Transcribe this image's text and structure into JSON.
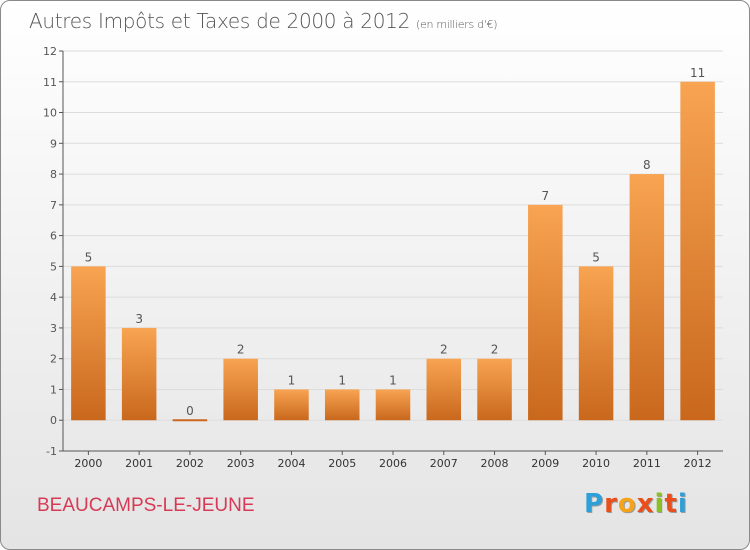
{
  "title": "Autres Impôts et Taxes de 2000 à 2012",
  "unit": "(en milliers d'€)",
  "commune": "BEAUCAMPS-LE-JEUNE",
  "brand": {
    "letters": [
      {
        "char": "P",
        "color": "#2e9fd8"
      },
      {
        "char": "r",
        "color": "#e94e1b"
      },
      {
        "char": "o",
        "color": "#f5a31a"
      },
      {
        "char": "x",
        "color": "#e94e1b"
      },
      {
        "char": "i",
        "color": "#8cbf26"
      },
      {
        "char": "t",
        "color": "#e94e1b"
      },
      {
        "char": "i",
        "color": "#2e9fd8"
      }
    ]
  },
  "chart_data": {
    "type": "bar",
    "title": "Autres Impôts et Taxes de 2000 à 2012",
    "subtitle": "(en milliers d'€)",
    "categories": [
      "2000",
      "2001",
      "2002",
      "2003",
      "2004",
      "2005",
      "2006",
      "2007",
      "2008",
      "2009",
      "2010",
      "2011",
      "2012"
    ],
    "values": [
      5,
      3,
      0,
      2,
      1,
      1,
      1,
      2,
      2,
      7,
      5,
      8,
      11
    ],
    "data_labels": [
      "5",
      "3",
      "0",
      "2",
      "1",
      "1",
      "1",
      "2",
      "2",
      "7",
      "5",
      "8",
      "11"
    ],
    "ylim": [
      -1,
      12
    ],
    "yticks": [
      "-1",
      "0",
      "1",
      "2",
      "3",
      "4",
      "5",
      "6",
      "7",
      "8",
      "9",
      "10",
      "11",
      "12"
    ],
    "grid": true,
    "bar_color_top": "#f8a452",
    "bar_color_bottom": "#c9681d",
    "axis_color": "#555555"
  }
}
